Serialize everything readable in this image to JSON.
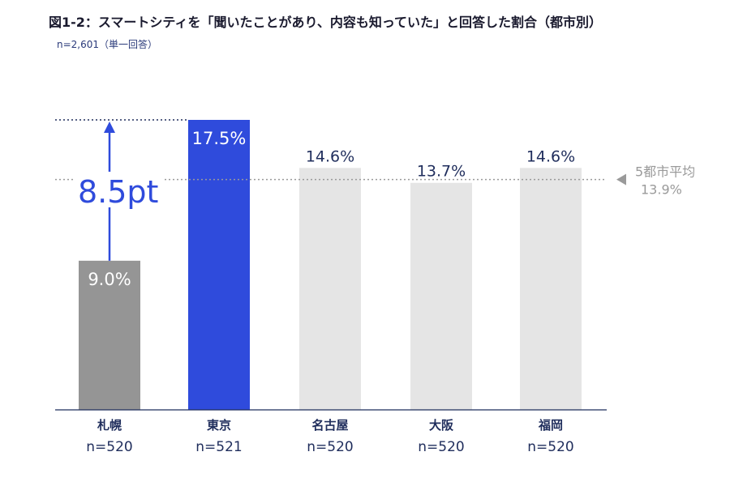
{
  "title": "図1-2：スマートシティを「聞いたことがあり、内容も知っていた」と回答した割合（都市別）",
  "subtitle": "n=2,601（単一回答）",
  "colors": {
    "highlight": "#2f4bdc",
    "base": "#959595",
    "other": "#e5e5e5",
    "label_dark": "#1f2d5c",
    "avg_line": "#9a9a9a",
    "arrow": "#2f4bdc"
  },
  "chart_data": {
    "type": "bar",
    "title": "図1-2：スマートシティを「聞いたことがあり、内容も知っていた」と回答した割合（都市別）",
    "categories": [
      "札幌",
      "東京",
      "名古屋",
      "大阪",
      "福岡"
    ],
    "sample_sizes": [
      "n=520",
      "n=521",
      "n=520",
      "n=520",
      "n=520"
    ],
    "values": [
      9.0,
      17.5,
      14.6,
      13.7,
      14.6
    ],
    "value_labels": [
      "9.0%",
      "17.5%",
      "14.6%",
      "13.7%",
      "14.6%"
    ],
    "ylim": [
      0,
      17.5
    ],
    "average": {
      "label": "5都市平均",
      "value": 13.9,
      "value_label": "13.9%"
    },
    "difference_annotation": "8.5pt",
    "grid": false,
    "legend": "none"
  }
}
